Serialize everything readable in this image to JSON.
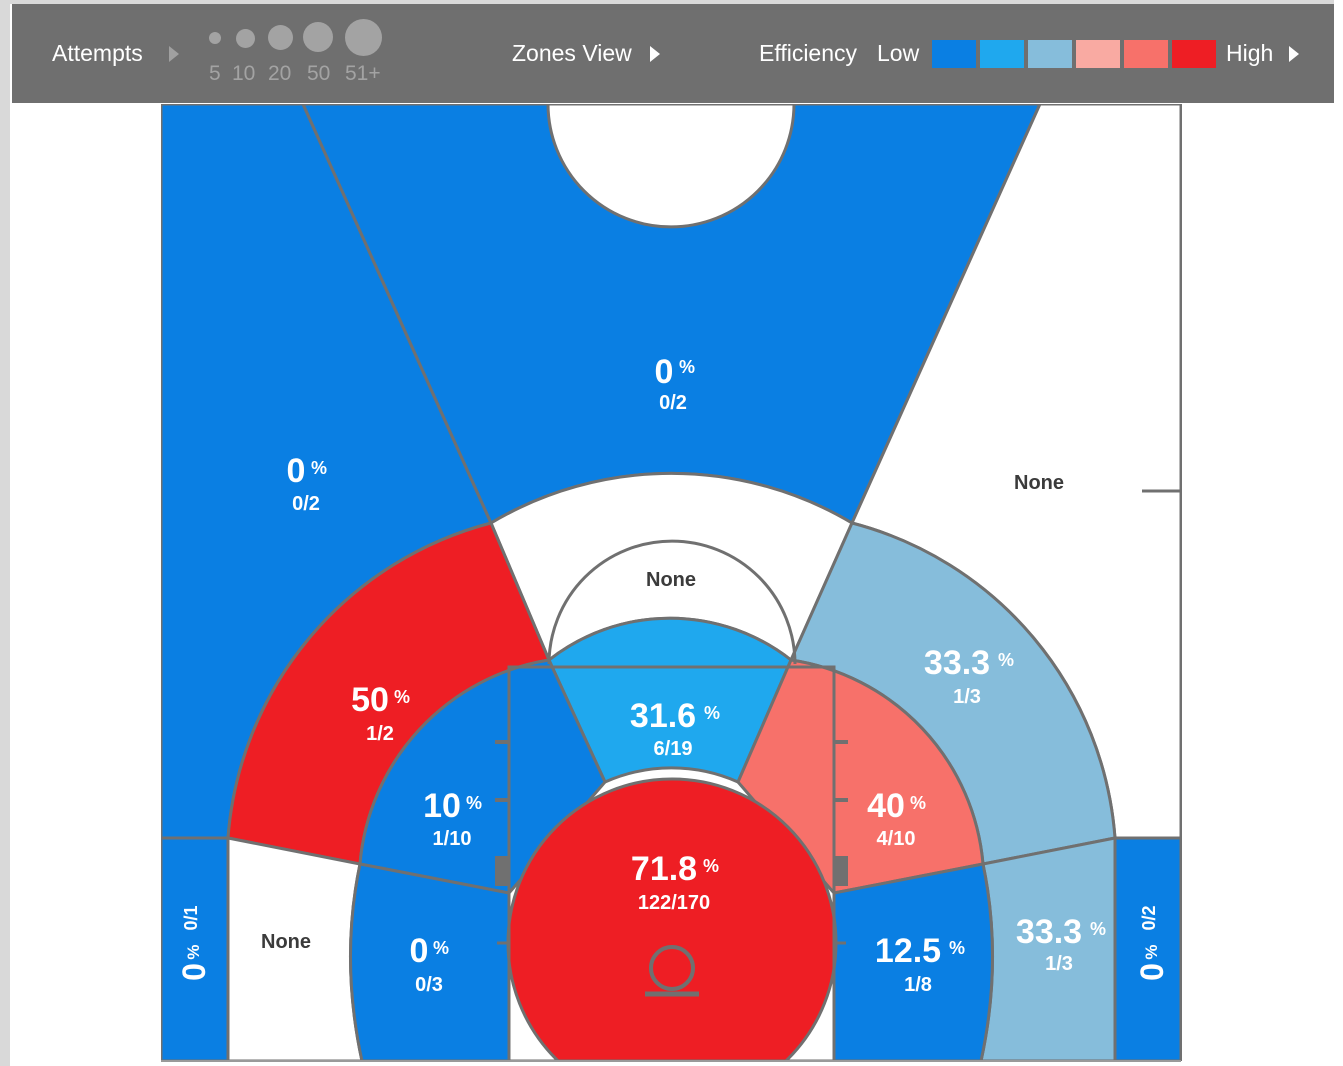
{
  "toolbar": {
    "attempts_label": "Attempts",
    "attempt_sizes": [
      "5",
      "10",
      "20",
      "50",
      "51+"
    ],
    "view_label": "Zones View",
    "efficiency_label": "Efficiency",
    "low_label": "Low",
    "high_label": "High",
    "scale_colors": [
      "#0a7fe3",
      "#1fa8ee",
      "#86bddb",
      "#f9aaa2",
      "#f7716a",
      "#ee1e24"
    ]
  },
  "colors": {
    "low": "#0a7fe3",
    "mid_low": "#1fa8ee",
    "mid": "#86bddb",
    "mid_high": "#f7716a",
    "high": "#ee1e24",
    "none": "#ffffff",
    "lines": "#707070"
  },
  "zones": {
    "above_break_center": {
      "pct": "0",
      "unit": "%",
      "made_att": "0/2"
    },
    "above_break_left": {
      "pct": "0",
      "unit": "%",
      "made_att": "0/2"
    },
    "above_break_right": {
      "label": "None"
    },
    "long_mid_center": {
      "label": "None"
    },
    "long_mid_left": {
      "pct": "50",
      "unit": "%",
      "made_att": "1/2"
    },
    "long_mid_right": {
      "pct": "33.3",
      "unit": "%",
      "made_att": "1/3"
    },
    "paint_top": {
      "pct": "31.6",
      "unit": "%",
      "made_att": "6/19"
    },
    "mid_left_wing": {
      "pct": "10",
      "unit": "%",
      "made_att": "1/10"
    },
    "mid_right_wing": {
      "pct": "40",
      "unit": "%",
      "made_att": "4/10"
    },
    "restricted_area": {
      "pct": "71.8",
      "unit": "%",
      "made_att": "122/170"
    },
    "baseline_mid_left": {
      "pct": "0",
      "unit": "%",
      "made_att": "0/3"
    },
    "baseline_mid_right": {
      "pct": "12.5",
      "unit": "%",
      "made_att": "1/8"
    },
    "baseline_long_left": {
      "label": "None"
    },
    "baseline_long_right": {
      "pct": "33.3",
      "unit": "%",
      "made_att": "1/3"
    },
    "corner_left": {
      "pct": "0",
      "unit": "%",
      "made_att": "0/1"
    },
    "corner_right": {
      "pct": "0",
      "unit": "%",
      "made_att": "0/2"
    }
  }
}
